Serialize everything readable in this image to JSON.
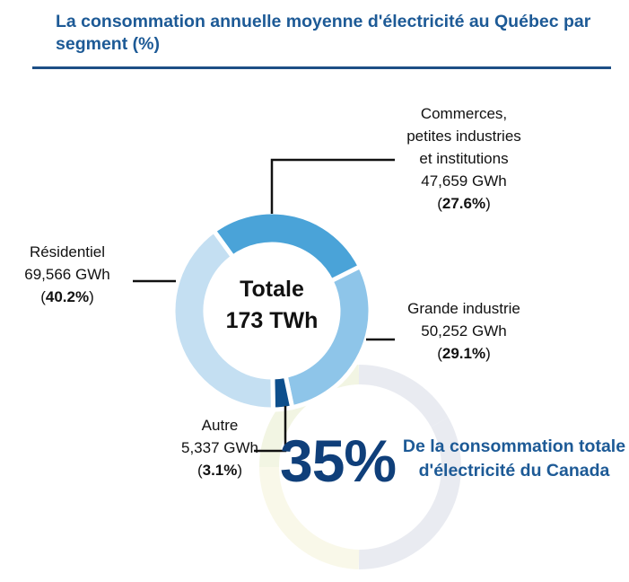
{
  "chart_data": {
    "type": "pie",
    "title": "La consommation annuelle moyenne d'électricité au Québec par segment (%)",
    "categories": [
      "Commerces,\npetites industries\net institutions",
      "Grande industrie",
      "Autre",
      "Résidentiel"
    ],
    "values": [
      27.6,
      29.1,
      3.1,
      40.2
    ],
    "value_labels": [
      "(27.6%)",
      "(29.1%)",
      "(3.1%)",
      "(40.2%)"
    ],
    "energy_labels": [
      "47,659 GWh",
      "50,252 GWh",
      "5,337 GWh",
      "69,566 GWh"
    ],
    "colors": [
      "#4aa3d8",
      "#8ec5e9",
      "#0e4f8c",
      "#c4dff2"
    ],
    "center_title": "Totale",
    "center_value": "173 TWh",
    "callout": {
      "label": "35%",
      "text": "De la consommation totale d'électricité du Canada"
    }
  }
}
